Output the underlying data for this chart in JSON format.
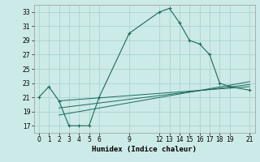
{
  "xlabel": "Humidex (Indice chaleur)",
  "xlim": [
    -0.5,
    21.5
  ],
  "ylim": [
    16,
    34
  ],
  "yticks": [
    17,
    19,
    21,
    23,
    25,
    27,
    29,
    31,
    33
  ],
  "xticks": [
    0,
    1,
    2,
    3,
    4,
    5,
    6,
    9,
    12,
    13,
    14,
    15,
    16,
    17,
    18,
    19,
    21
  ],
  "bg_color": "#cceae7",
  "grid_color": "#aad4d0",
  "line_color": "#1a6b5a",
  "main_series": {
    "x": [
      0,
      1,
      2,
      3,
      4,
      5,
      6,
      9,
      12,
      13,
      14,
      15,
      16,
      17,
      18,
      19,
      21
    ],
    "y": [
      21,
      22.5,
      20.5,
      17,
      17,
      17,
      21,
      30,
      33,
      33.5,
      31.5,
      29,
      28.5,
      27,
      23,
      22.5,
      22
    ]
  },
  "flat_lines": [
    {
      "x": [
        2,
        21
      ],
      "y": [
        20.5,
        22.5
      ]
    },
    {
      "x": [
        2,
        21
      ],
      "y": [
        19.5,
        22.8
      ]
    },
    {
      "x": [
        2,
        21
      ],
      "y": [
        18.5,
        23.2
      ]
    }
  ]
}
